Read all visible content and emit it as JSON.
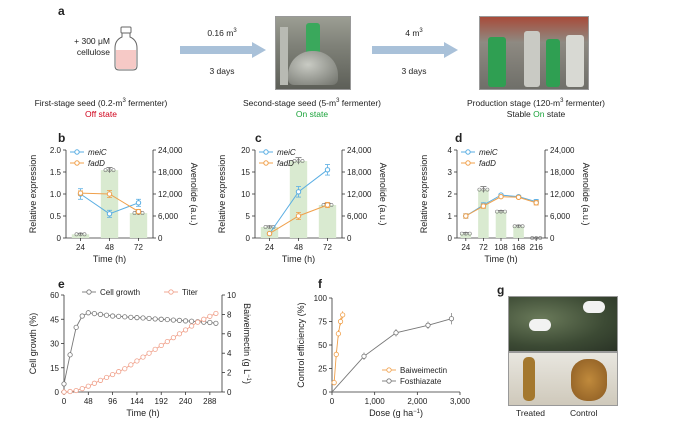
{
  "panel_a": {
    "label": "a",
    "additive_line1": "+ 300 μM",
    "additive_line2": "cellulose",
    "step1_volume": "0.16 m",
    "step1_volume_sup": "3",
    "step1_time": "3 days",
    "step2_volume": "4 m",
    "step2_volume_sup": "3",
    "step2_time": "3 days",
    "stage1_caption": "First-stage seed (0.2-m",
    "stage1_caption_sup": "3",
    "stage1_caption_end": " fermenter)",
    "stage1_state": "Off state",
    "stage2_caption": "Second-stage seed (5-m",
    "stage2_caption_sup": "3",
    "stage2_caption_end": " fermenter)",
    "stage2_state": "On state",
    "stage3_caption": "Production stage (120-m",
    "stage3_caption_sup": "3",
    "stage3_caption_end": " fermenter)",
    "stage3_state_prefix": "Stable ",
    "stage3_state_on": "On",
    "stage3_state_suffix": " state",
    "colors": {
      "off": "#d0021b",
      "on": "#1aa33a",
      "arrow": "#a9c1d9"
    }
  },
  "panel_g": {
    "label": "g",
    "treated": "Treated",
    "control": "Control"
  },
  "chart_data": [
    {
      "id": "b",
      "type": "bar",
      "label": "b",
      "xlabel": "Time (h)",
      "ylabel": "Relative expression",
      "ylabel2": "Avenolide (a.u.)",
      "categories": [
        "24",
        "48",
        "72"
      ],
      "ylim": [
        0,
        2
      ],
      "yticks": [
        "0",
        "0.5",
        "1.0",
        "1.5",
        "2.0"
      ],
      "y2lim": [
        0,
        24000
      ],
      "y2ticks": [
        "0",
        "6,000",
        "12,000",
        "18,000",
        "24,000"
      ],
      "bars": [
        1000,
        18500,
        6800
      ],
      "bar_err": [
        300,
        700,
        500
      ],
      "series": [
        {
          "name": "meiC",
          "color": "#5aaee3",
          "values": [
            1.0,
            0.55,
            0.8
          ],
          "err": [
            0.12,
            0.08,
            0.08
          ]
        },
        {
          "name": "fadD",
          "color": "#f0a04b",
          "values": [
            1.02,
            1.0,
            0.6
          ],
          "err": [
            0.05,
            0.08,
            0.05
          ]
        }
      ],
      "legend": "top-left"
    },
    {
      "id": "c",
      "type": "bar",
      "label": "c",
      "xlabel": "Time (h)",
      "ylabel": "Relative expression",
      "ylabel2": "Avenolide (a.u.)",
      "categories": [
        "24",
        "48",
        "72"
      ],
      "ylim": [
        0,
        20
      ],
      "yticks": [
        "0",
        "5",
        "10",
        "15",
        "20"
      ],
      "y2lim": [
        0,
        24000
      ],
      "y2ticks": [
        "0",
        "6,000",
        "12,000",
        "18,000",
        "24,000"
      ],
      "bars": [
        3000,
        21000,
        9000
      ],
      "bar_err": [
        300,
        900,
        500
      ],
      "series": [
        {
          "name": "meiC",
          "color": "#5aaee3",
          "values": [
            1.0,
            10.5,
            15.5
          ],
          "err": [
            0.3,
            1.2,
            1.2
          ]
        },
        {
          "name": "fadD",
          "color": "#f0a04b",
          "values": [
            1.0,
            5.0,
            7.5
          ],
          "err": [
            0.3,
            0.8,
            0.6
          ]
        }
      ],
      "legend": "top-left"
    },
    {
      "id": "d",
      "type": "bar",
      "label": "d",
      "xlabel": "Time (h)",
      "ylabel": "Relative expression",
      "ylabel2": "Avenolide (a.u.)",
      "categories": [
        "24",
        "72",
        "108",
        "168",
        "216"
      ],
      "ylim": [
        0,
        4
      ],
      "yticks": [
        "0",
        "1",
        "2",
        "3",
        "4"
      ],
      "y2lim": [
        0,
        24000
      ],
      "y2ticks": [
        "0",
        "6,000",
        "12,000",
        "18,000",
        "24,000"
      ],
      "bars": [
        1200,
        13200,
        7200,
        3200,
        0
      ],
      "bar_err": [
        300,
        800,
        300,
        300,
        100
      ],
      "series": [
        {
          "name": "meiC",
          "color": "#5aaee3",
          "values": [
            1.0,
            1.5,
            1.95,
            1.88,
            1.65
          ],
          "err": [
            0.1,
            0.1,
            0.05,
            0.05,
            0.1
          ]
        },
        {
          "name": "fadD",
          "color": "#f0a04b",
          "values": [
            1.0,
            1.45,
            1.88,
            1.85,
            1.6
          ],
          "err": [
            0.1,
            0.1,
            0.05,
            0.05,
            0.1
          ]
        }
      ],
      "legend": "top-left"
    },
    {
      "id": "e",
      "type": "line",
      "label": "e",
      "xlabel": "Time (h)",
      "ylabel": "Cell growth (%)",
      "ylabel2_main": "Baiweimectin (g L",
      "ylabel2_sup": "−1",
      "ylabel2_end": ")",
      "xlim": [
        0,
        312
      ],
      "xticks": [
        "0",
        "48",
        "96",
        "144",
        "192",
        "240",
        "288"
      ],
      "ylim": [
        0,
        60
      ],
      "yticks": [
        "0",
        "15",
        "30",
        "45",
        "60"
      ],
      "y2lim": [
        0,
        10
      ],
      "y2ticks": [
        "0",
        "2",
        "4",
        "6",
        "8",
        "10"
      ],
      "series": [
        {
          "name": "Cell growth",
          "color": "#777777",
          "axis": "left",
          "x": [
            0,
            12,
            24,
            36,
            48,
            60,
            72,
            84,
            96,
            108,
            120,
            132,
            144,
            156,
            168,
            180,
            192,
            204,
            216,
            228,
            240,
            252,
            264,
            276,
            288,
            300
          ],
          "values": [
            5,
            23,
            40,
            47,
            49,
            48.5,
            48,
            47.5,
            47,
            46.8,
            46.5,
            46.2,
            46,
            45.8,
            45.5,
            45.2,
            45,
            44.8,
            44.5,
            44.3,
            44,
            43.8,
            43.5,
            43.2,
            43,
            42.5
          ]
        },
        {
          "name": "Titer",
          "color": "#f0a08a",
          "axis": "right",
          "x": [
            0,
            12,
            24,
            36,
            48,
            60,
            72,
            84,
            96,
            108,
            120,
            132,
            144,
            156,
            168,
            180,
            192,
            204,
            216,
            228,
            240,
            252,
            264,
            276,
            288,
            300
          ],
          "values": [
            0,
            0.05,
            0.15,
            0.35,
            0.6,
            0.9,
            1.2,
            1.5,
            1.8,
            2.1,
            2.4,
            2.8,
            3.2,
            3.6,
            4.0,
            4.4,
            4.8,
            5.2,
            5.6,
            6.0,
            6.4,
            6.8,
            7.2,
            7.5,
            7.8,
            8.1
          ]
        }
      ],
      "legend": "top"
    },
    {
      "id": "f",
      "type": "scatter",
      "label": "f",
      "xlabel_main": "Dose (g ha",
      "xlabel_sup": "−1",
      "xlabel_end": ")",
      "ylabel": "Control efficiency (%)",
      "xlim": [
        0,
        3000
      ],
      "xticks": [
        "0",
        "1,000",
        "2,000",
        "3,000"
      ],
      "ylim": [
        0,
        100
      ],
      "yticks": [
        "0",
        "25",
        "50",
        "75",
        "100"
      ],
      "series": [
        {
          "name": "Baiweimectin",
          "color": "#f0a04b",
          "x": [
            50,
            100,
            150,
            200,
            250
          ],
          "values": [
            10,
            40,
            62,
            75,
            82
          ],
          "err": [
            3,
            4,
            4,
            4,
            4
          ]
        },
        {
          "name": "Fosthiazate",
          "color": "#777777",
          "x": [
            750,
            1500,
            2250,
            2800
          ],
          "values": [
            38,
            63,
            71,
            78
          ],
          "err": [
            4,
            4,
            4,
            6
          ]
        }
      ],
      "legend": "bottom-right"
    }
  ]
}
